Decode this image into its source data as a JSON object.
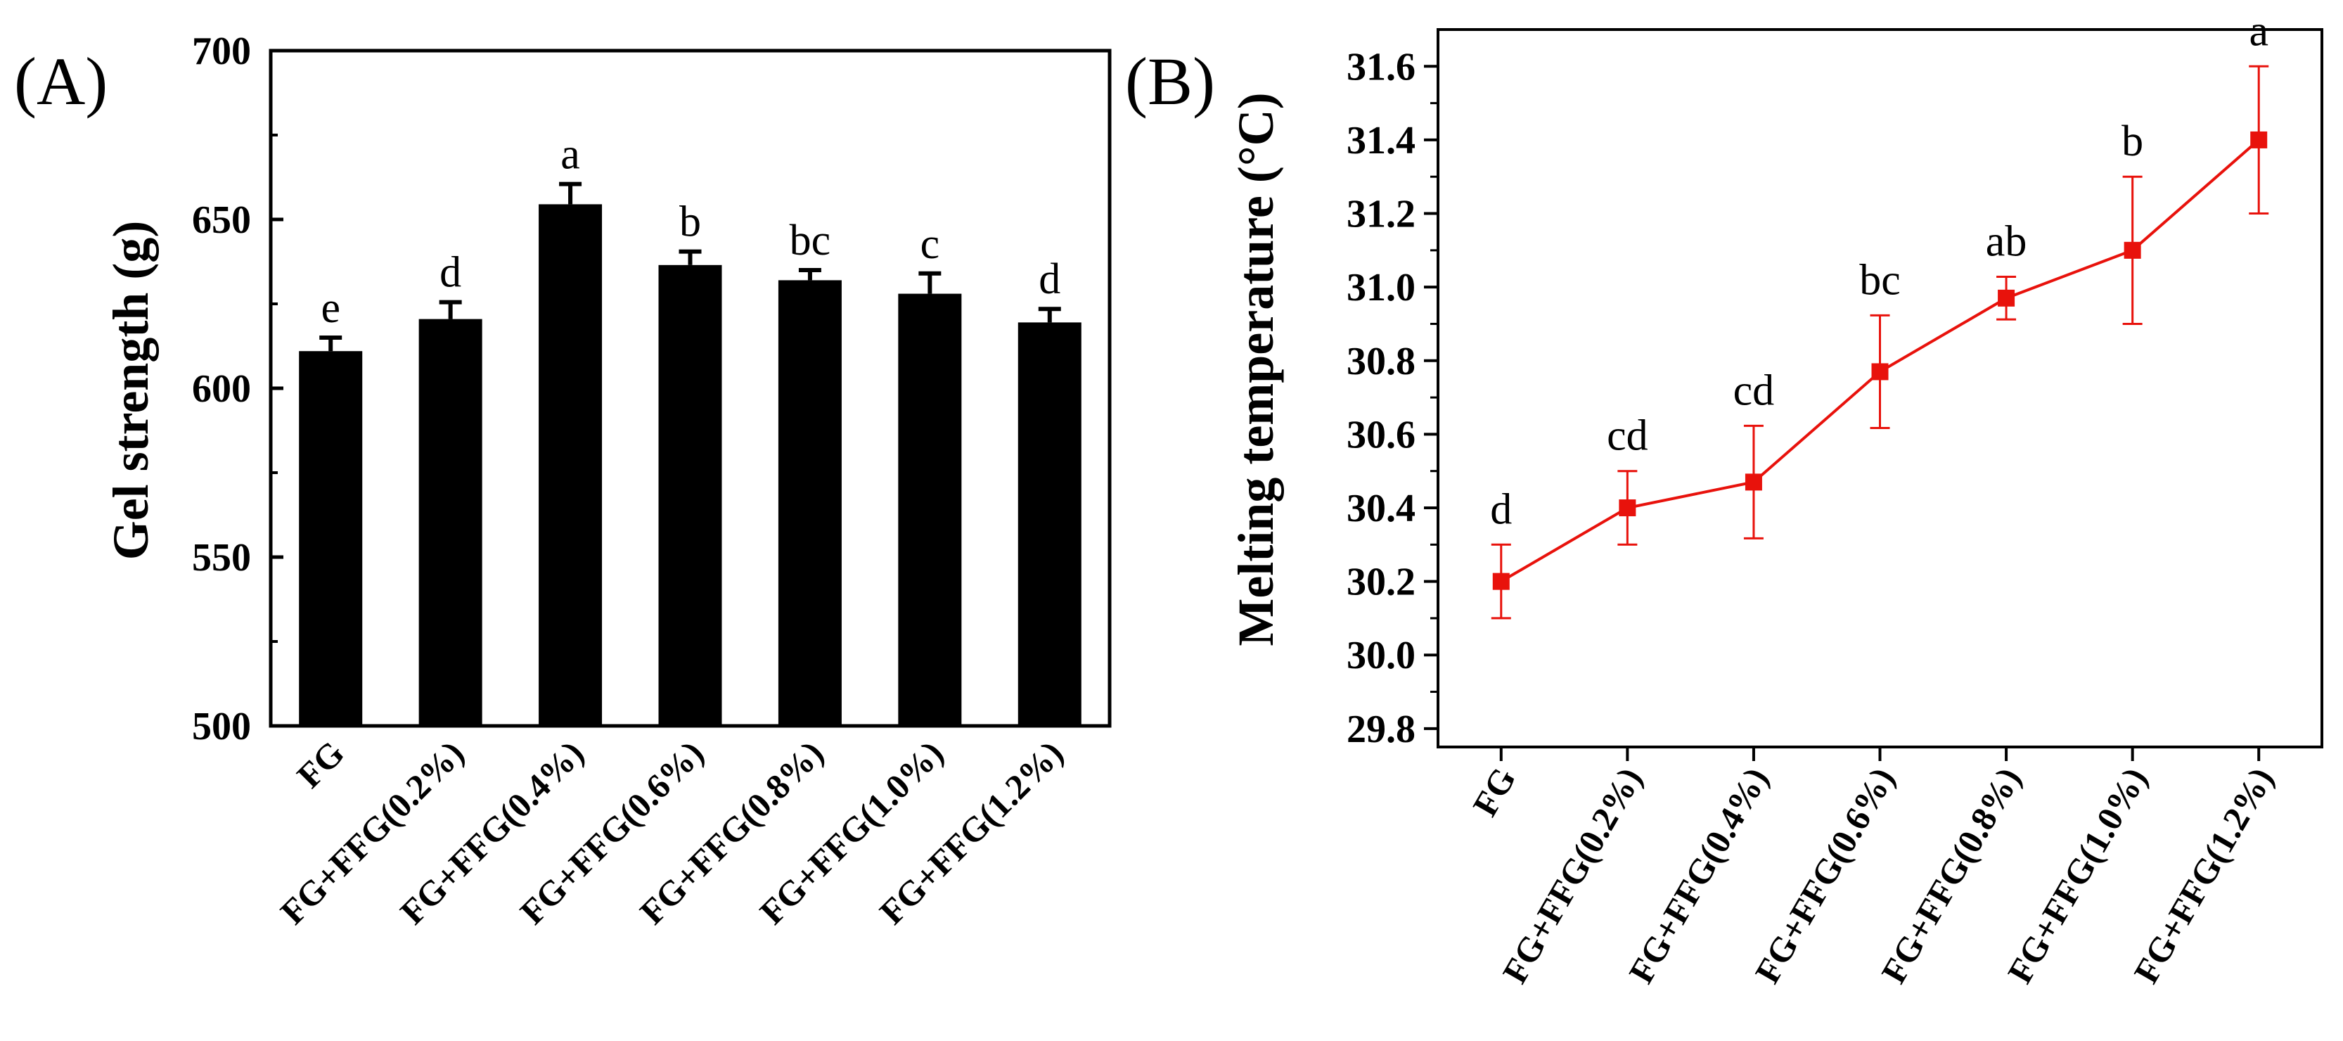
{
  "chart_data": [
    {
      "type": "bar",
      "panel": "(A)",
      "title": "",
      "xlabel": "",
      "ylabel": "Gel strength (g)",
      "ylim": [
        500,
        700
      ],
      "yticks": [
        "500",
        "550",
        "600",
        "650",
        "700"
      ],
      "categories": [
        "FG",
        "FG+FFG(0.2%)",
        "FG+FFG(0.4%)",
        "FG+FFG(0.6%)",
        "FG+FFG(0.8%)",
        "FG+FFG(1.0%)",
        "FG+FFG(1.2%)"
      ],
      "values": [
        611,
        620.5,
        654.5,
        636.5,
        632,
        628,
        619.5
      ],
      "errors": [
        4,
        5,
        6,
        4,
        3,
        6,
        4
      ],
      "significance": [
        "e",
        "d",
        "a",
        "b",
        "bc",
        "c",
        "d"
      ],
      "bar_color": "#000000",
      "grid": false
    },
    {
      "type": "line",
      "panel": "(B)",
      "title": "",
      "xlabel": "",
      "ylabel": "Melting temperature (°C)",
      "ylim": [
        29.75,
        31.7
      ],
      "yticks": [
        "29.8",
        "30.0",
        "30.2",
        "30.4",
        "30.6",
        "30.8",
        "31.0",
        "31.2",
        "31.4",
        "31.6"
      ],
      "categories": [
        "FG",
        "FG+FFG(0.2%)",
        "FG+FFG(0.4%)",
        "FG+FFG(0.6%)",
        "FG+FFG(0.8%)",
        "FG+FFG(1.0%)",
        "FG+FFG(1.2%)"
      ],
      "values": [
        30.2,
        30.4,
        30.47,
        30.77,
        30.97,
        31.1,
        31.4
      ],
      "errors": [
        0.1,
        0.1,
        0.153,
        0.153,
        0.058,
        0.2,
        0.2
      ],
      "significance": [
        "d",
        "cd",
        "cd",
        "bc",
        "ab",
        "b",
        "a"
      ],
      "line_color": "#e8120c",
      "marker": "square",
      "grid": false
    }
  ]
}
